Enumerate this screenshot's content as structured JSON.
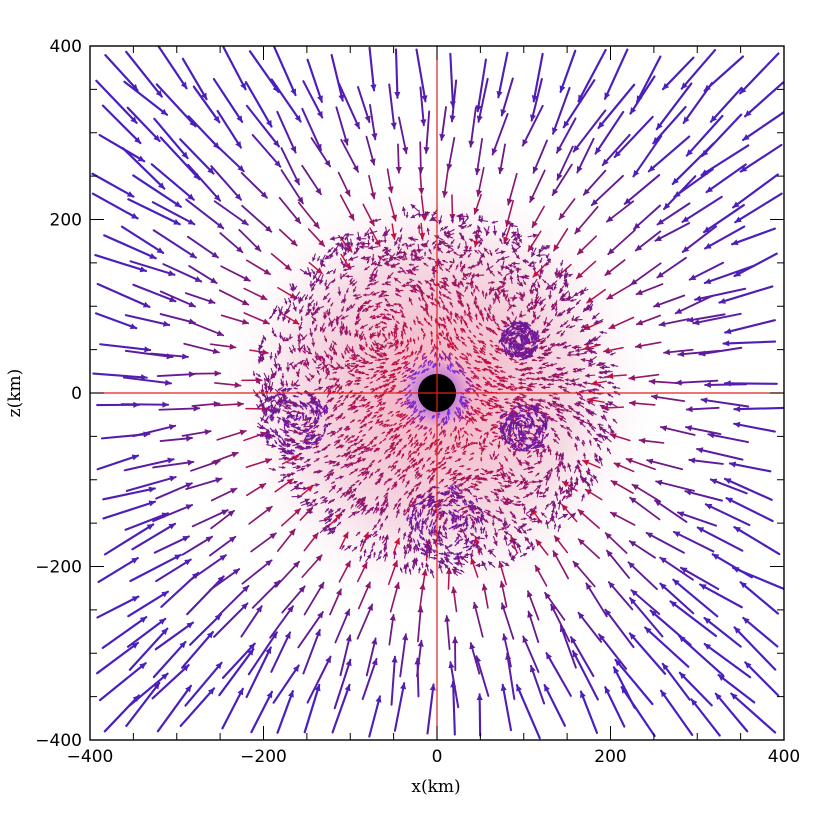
{
  "chart_data": {
    "type": "vector-field",
    "xlabel": "x(km)",
    "ylabel": "z(km)",
    "xlim": [
      -400,
      400
    ],
    "ylim": [
      -400,
      400
    ],
    "xticks": [
      -400,
      -200,
      0,
      200,
      400
    ],
    "yticks": [
      -400,
      -200,
      0,
      200,
      400
    ],
    "xtick_labels": [
      "−400",
      "−200",
      "0",
      "200",
      "400"
    ],
    "ytick_labels": [
      "−400",
      "−200",
      "0",
      "200",
      "400"
    ],
    "center_disk_radius_km": 22,
    "crosshair_at": [
      0,
      0
    ],
    "colors": {
      "inflow_far": "#4a1fbf",
      "inflow_mid": "#6a1a8a",
      "turbulent_inner": "#d0103a",
      "crosshair": "#e0201a",
      "core": "#000000"
    },
    "flow_description": "radial inflow in outer region, turbulent mixed flow within ~200 km"
  }
}
